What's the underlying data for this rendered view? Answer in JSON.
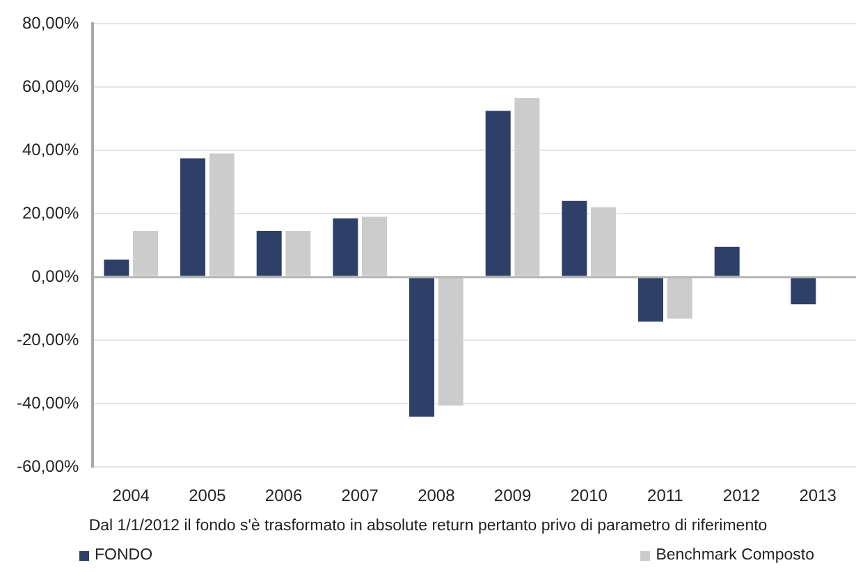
{
  "chart_data": {
    "type": "bar",
    "categories": [
      "2004",
      "2005",
      "2006",
      "2007",
      "2008",
      "2009",
      "2010",
      "2011",
      "2012",
      "2013"
    ],
    "series": [
      {
        "name": "FONDO",
        "color": "#2e4068",
        "values": [
          6,
          38,
          15,
          19,
          -44.5,
          53,
          24.5,
          -14.5,
          10,
          -9
        ]
      },
      {
        "name": "Benchmark Composto",
        "color": "#cccccc",
        "values": [
          15,
          39.5,
          15,
          19.5,
          -41,
          57,
          22.5,
          -13.5,
          null,
          null
        ]
      }
    ],
    "ylim": [
      -60,
      80
    ],
    "yticks": [
      {
        "value": -60,
        "label": "-60,00%"
      },
      {
        "value": -40,
        "label": "-40,00%"
      },
      {
        "value": -20,
        "label": "-20,00%"
      },
      {
        "value": 0,
        "label": "0,00%"
      },
      {
        "value": 20,
        "label": "20,00%"
      },
      {
        "value": 40,
        "label": "40,00%"
      },
      {
        "value": 60,
        "label": "60,00%"
      },
      {
        "value": 80,
        "label": "80,00%"
      }
    ],
    "grid": "y",
    "legend": "bottom",
    "annotations": [
      "Dal 1/1/2012 il fondo s'è trasformato in absolute return pertanto privo di parametro di riferimento"
    ]
  }
}
